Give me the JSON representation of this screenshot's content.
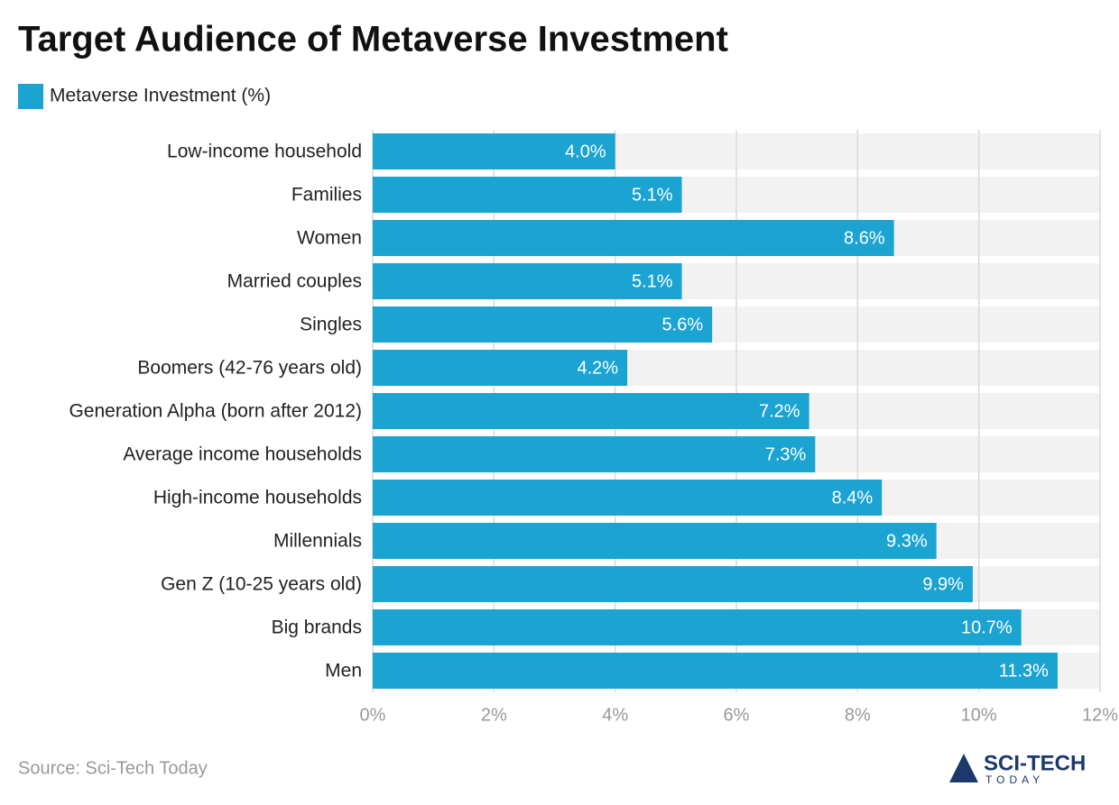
{
  "chart_data": {
    "type": "hbar",
    "title": "Target Audience of Metaverse Investment",
    "categories": [
      "Low-income household",
      "Families",
      "Women",
      "Married couples",
      "Singles",
      "Boomers (42-76 years old)",
      "Generation Alpha (born after 2012)",
      "Average income households",
      "High-income households",
      "Millennials",
      "Gen Z (10-25 years old)",
      "Big brands",
      "Men"
    ],
    "series": [
      {
        "name": "Metaverse Investment (%)",
        "color": "#1ba3d1",
        "values": [
          4.0,
          5.1,
          8.6,
          5.1,
          5.6,
          4.2,
          7.2,
          7.3,
          8.4,
          9.3,
          9.9,
          10.7,
          11.3
        ],
        "value_labels": [
          "4.0%",
          "5.1%",
          "8.6%",
          "5.1%",
          "5.6%",
          "4.2%",
          "7.2%",
          "7.3%",
          "8.4%",
          "9.3%",
          "9.9%",
          "10.7%",
          "11.3%"
        ]
      }
    ],
    "xlim": [
      0,
      12
    ],
    "xticks": [
      {
        "value": 0,
        "label": "0%"
      },
      {
        "value": 2,
        "label": "2%"
      },
      {
        "value": 4,
        "label": "4%"
      },
      {
        "value": 6,
        "label": "6%"
      },
      {
        "value": 8,
        "label": "8%"
      },
      {
        "value": 10,
        "label": "10%"
      },
      {
        "value": 12,
        "label": "12%"
      }
    ],
    "grid": true,
    "legend": "top-left",
    "source": "Source: Sci-Tech Today"
  },
  "logo": {
    "name": "SCI-TECH",
    "tagline": "TODAY"
  }
}
